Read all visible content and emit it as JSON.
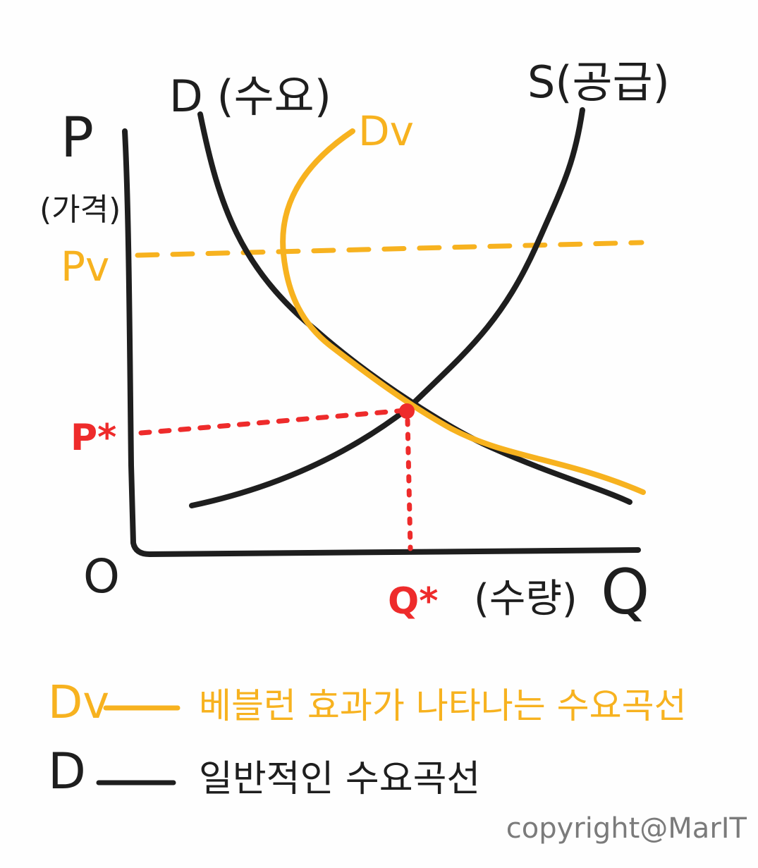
{
  "labels": {
    "y_axis_symbol": "P",
    "y_axis_name": "(가격)",
    "x_axis_symbol": "Q",
    "x_axis_name": "(수량)",
    "origin": "O",
    "demand_curve": "D (수요)",
    "supply_curve": "S(공급)",
    "veblen_curve": "Dv",
    "price_veblen": "Pv",
    "eq_price": "P*",
    "eq_quantity": "Q*"
  },
  "legend": [
    {
      "symbol": "Dv",
      "text": "베블런 효과가 나타나는 수요곡선",
      "color": "#f7b21f"
    },
    {
      "symbol": "D",
      "text": "일반적인 수요곡선",
      "color": "#1e1e1e"
    }
  ],
  "footer": {
    "copyright": "copyright@MarIT"
  },
  "colors": {
    "ink": "#1e1e1e",
    "veblen": "#f7b21f",
    "equilibrium": "#ee2b2b",
    "copyright": "#7b7b7b"
  }
}
